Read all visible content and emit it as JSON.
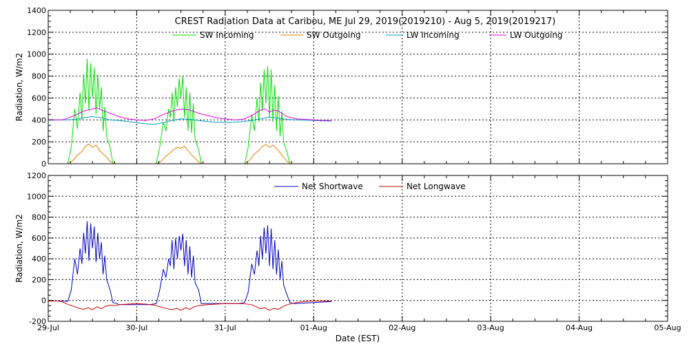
{
  "figure_title": "CREST Radiation Data at Caribou, ME   Jul 29, 2019(2019210) - Aug  5, 2019(2019217)",
  "xlabel": "Date (EST)",
  "x_ticks": [
    "29-Jul",
    "30-Jul",
    "31-Jul",
    "01-Aug",
    "02-Aug",
    "03-Aug",
    "04-Aug",
    "05-Aug"
  ],
  "chart_data": [
    {
      "type": "line",
      "ylabel": "Radiation, W/m2",
      "ylim": [
        0,
        1400
      ],
      "yticks": [
        0,
        200,
        400,
        600,
        800,
        1000,
        1200,
        1400
      ],
      "xlim_days": [
        0,
        7
      ],
      "grid": true,
      "legend_position": "top",
      "series": [
        {
          "name": "SW Incoming",
          "color": "#00e000",
          "x": [
            0.12,
            0.22,
            0.26,
            0.3,
            0.33,
            0.36,
            0.38,
            0.4,
            0.42,
            0.44,
            0.46,
            0.48,
            0.5,
            0.52,
            0.54,
            0.56,
            0.58,
            0.6,
            0.62,
            0.64,
            0.66,
            0.7,
            0.73,
            0.78,
            0.8,
            1.12,
            1.22,
            1.26,
            1.3,
            1.33,
            1.36,
            1.38,
            1.4,
            1.42,
            1.44,
            1.46,
            1.48,
            1.5,
            1.52,
            1.54,
            1.56,
            1.58,
            1.6,
            1.62,
            1.64,
            1.66,
            1.7,
            1.73,
            1.78,
            1.8,
            2.12,
            2.22,
            2.26,
            2.3,
            2.33,
            2.36,
            2.38,
            2.4,
            2.42,
            2.44,
            2.46,
            2.48,
            2.5,
            2.52,
            2.54,
            2.56,
            2.58,
            2.6,
            2.62,
            2.64,
            2.66,
            2.7,
            2.73,
            2.78,
            2.8,
            3.2
          ],
          "y": [
            0,
            0,
            150,
            500,
            320,
            650,
            400,
            820,
            550,
            960,
            480,
            920,
            600,
            880,
            450,
            820,
            500,
            700,
            300,
            520,
            250,
            150,
            0,
            0,
            0,
            0,
            0,
            150,
            380,
            300,
            500,
            420,
            650,
            380,
            700,
            520,
            780,
            600,
            800,
            420,
            700,
            300,
            650,
            280,
            550,
            220,
            130,
            0,
            0,
            0,
            0,
            0,
            150,
            450,
            300,
            600,
            380,
            740,
            480,
            860,
            550,
            890,
            420,
            860,
            380,
            720,
            300,
            620,
            250,
            480,
            200,
            100,
            0,
            0,
            0,
            0
          ]
        },
        {
          "name": "SW Outgoing",
          "color": "#e08000",
          "x": [
            0.12,
            0.22,
            0.28,
            0.33,
            0.38,
            0.42,
            0.46,
            0.5,
            0.54,
            0.58,
            0.62,
            0.66,
            0.7,
            0.75,
            0.8,
            1.12,
            1.22,
            1.28,
            1.33,
            1.38,
            1.42,
            1.46,
            1.5,
            1.54,
            1.58,
            1.62,
            1.66,
            1.7,
            1.75,
            1.8,
            2.12,
            2.22,
            2.28,
            2.33,
            2.38,
            2.42,
            2.46,
            2.5,
            2.54,
            2.58,
            2.62,
            2.66,
            2.7,
            2.75,
            2.8,
            3.2
          ],
          "y": [
            0,
            0,
            30,
            80,
            110,
            160,
            180,
            150,
            170,
            120,
            90,
            60,
            20,
            0,
            0,
            0,
            0,
            25,
            70,
            100,
            130,
            150,
            140,
            160,
            120,
            80,
            50,
            15,
            0,
            0,
            0,
            0,
            35,
            90,
            120,
            160,
            175,
            150,
            170,
            140,
            100,
            60,
            20,
            0,
            0,
            0
          ]
        },
        {
          "name": "LW Incoming",
          "color": "#00a0c0",
          "x": [
            0,
            0.2,
            0.3,
            0.4,
            0.5,
            0.6,
            0.7,
            0.8,
            0.9,
            1.0,
            1.1,
            1.2,
            1.3,
            1.4,
            1.5,
            1.6,
            1.7,
            1.8,
            1.9,
            2.0,
            2.1,
            2.2,
            2.3,
            2.4,
            2.5,
            2.6,
            2.7,
            2.8,
            2.9,
            3.0,
            3.1,
            3.2
          ],
          "y": [
            400,
            400,
            405,
            420,
            430,
            420,
            400,
            395,
            385,
            375,
            365,
            360,
            375,
            395,
            410,
            405,
            395,
            385,
            380,
            378,
            380,
            385,
            395,
            410,
            425,
            415,
            405,
            400,
            398,
            395,
            392,
            390
          ]
        },
        {
          "name": "LW Outgoing",
          "color": "#e000e0",
          "x": [
            0,
            0.15,
            0.2,
            0.3,
            0.4,
            0.5,
            0.55,
            0.6,
            0.7,
            0.8,
            0.9,
            1.0,
            1.1,
            1.2,
            1.3,
            1.4,
            1.5,
            1.6,
            1.7,
            1.8,
            1.9,
            2.0,
            2.1,
            2.2,
            2.3,
            2.4,
            2.45,
            2.5,
            2.55,
            2.6,
            2.7,
            2.8,
            2.9,
            3.0,
            3.1,
            3.2
          ],
          "y": [
            400,
            400,
            410,
            440,
            480,
            500,
            510,
            490,
            460,
            430,
            410,
            400,
            395,
            410,
            450,
            480,
            500,
            490,
            460,
            440,
            420,
            410,
            400,
            405,
            440,
            490,
            500,
            470,
            490,
            480,
            430,
            410,
            405,
            400,
            395,
            395
          ]
        }
      ]
    },
    {
      "type": "line",
      "ylabel": "Radiation, W/m2",
      "ylim": [
        -200,
        1200
      ],
      "yticks": [
        -200,
        0,
        200,
        400,
        600,
        800,
        1000,
        1200
      ],
      "xlim_days": [
        0,
        7
      ],
      "grid": true,
      "legend_position": "top",
      "series": [
        {
          "name": "Net Shortwave",
          "color": "#0000c0",
          "x": [
            0,
            0.15,
            0.22,
            0.26,
            0.3,
            0.33,
            0.36,
            0.38,
            0.4,
            0.42,
            0.44,
            0.46,
            0.48,
            0.5,
            0.52,
            0.54,
            0.56,
            0.58,
            0.6,
            0.62,
            0.64,
            0.66,
            0.7,
            0.73,
            0.78,
            0.8,
            1.0,
            1.15,
            1.22,
            1.26,
            1.3,
            1.33,
            1.36,
            1.38,
            1.4,
            1.42,
            1.44,
            1.46,
            1.48,
            1.5,
            1.52,
            1.54,
            1.56,
            1.58,
            1.6,
            1.62,
            1.64,
            1.66,
            1.7,
            1.73,
            1.78,
            1.8,
            2.0,
            2.15,
            2.22,
            2.26,
            2.3,
            2.33,
            2.36,
            2.38,
            2.4,
            2.42,
            2.44,
            2.46,
            2.48,
            2.5,
            2.52,
            2.54,
            2.56,
            2.58,
            2.6,
            2.62,
            2.64,
            2.66,
            2.7,
            2.73,
            2.78,
            2.8,
            3.2
          ],
          "y": [
            -5,
            -5,
            -10,
            100,
            400,
            250,
            500,
            350,
            650,
            450,
            760,
            380,
            740,
            500,
            710,
            370,
            650,
            400,
            560,
            250,
            430,
            200,
            100,
            -20,
            -30,
            -40,
            -40,
            -40,
            -30,
            100,
            300,
            220,
            400,
            330,
            580,
            300,
            600,
            400,
            620,
            480,
            640,
            330,
            580,
            250,
            520,
            220,
            430,
            170,
            100,
            -30,
            -30,
            -30,
            -30,
            -30,
            -20,
            80,
            350,
            250,
            480,
            330,
            620,
            400,
            700,
            450,
            720,
            330,
            690,
            300,
            580,
            250,
            490,
            200,
            380,
            150,
            50,
            -20,
            -30,
            -30,
            -10
          ]
        },
        {
          "name": "Net Longwave",
          "color": "#d00000",
          "x": [
            0,
            0.1,
            0.15,
            0.2,
            0.3,
            0.35,
            0.4,
            0.45,
            0.5,
            0.55,
            0.6,
            0.65,
            0.7,
            0.75,
            0.8,
            0.9,
            1.0,
            1.1,
            1.15,
            1.2,
            1.3,
            1.35,
            1.4,
            1.45,
            1.5,
            1.55,
            1.6,
            1.65,
            1.7,
            1.75,
            1.8,
            1.9,
            2.0,
            2.1,
            2.2,
            2.3,
            2.35,
            2.4,
            2.45,
            2.5,
            2.55,
            2.6,
            2.65,
            2.7,
            2.8,
            2.9,
            3.0,
            3.1,
            3.2
          ],
          "y": [
            -5,
            -5,
            -10,
            -30,
            -60,
            -75,
            -85,
            -70,
            -90,
            -60,
            -80,
            -55,
            -45,
            -50,
            -40,
            -35,
            -30,
            -35,
            -40,
            -45,
            -70,
            -80,
            -90,
            -75,
            -95,
            -70,
            -85,
            -60,
            -50,
            -45,
            -40,
            -35,
            -30,
            -30,
            -30,
            -40,
            -60,
            -80,
            -70,
            -95,
            -75,
            -85,
            -60,
            -40,
            -20,
            -10,
            -5,
            -5,
            -5
          ]
        }
      ]
    }
  ]
}
